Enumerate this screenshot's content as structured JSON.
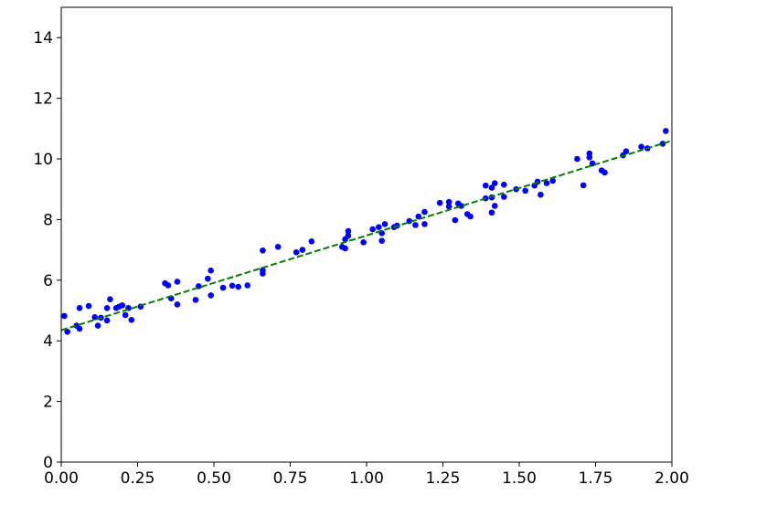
{
  "chart_data": {
    "type": "scatter",
    "title": "",
    "xlabel": "",
    "ylabel": "",
    "xlim": [
      0,
      2
    ],
    "ylim": [
      0,
      15
    ],
    "grid": false,
    "x_ticks": [
      "0.00",
      "0.25",
      "0.50",
      "0.75",
      "1.00",
      "1.25",
      "1.50",
      "1.75",
      "2.00"
    ],
    "y_ticks": [
      "0",
      "2",
      "4",
      "6",
      "8",
      "10",
      "12",
      "14"
    ],
    "series": [
      {
        "kind": "scatter",
        "color": "#0000ff",
        "marker": "point",
        "points": [
          [
            0.01,
            4.82
          ],
          [
            0.02,
            4.3
          ],
          [
            0.05,
            4.5
          ],
          [
            0.06,
            4.4
          ],
          [
            0.06,
            5.08
          ],
          [
            0.09,
            5.15
          ],
          [
            0.11,
            4.78
          ],
          [
            0.12,
            4.5
          ],
          [
            0.13,
            4.76
          ],
          [
            0.15,
            4.67
          ],
          [
            0.15,
            5.08
          ],
          [
            0.16,
            5.37
          ],
          [
            0.18,
            5.08
          ],
          [
            0.19,
            5.13
          ],
          [
            0.2,
            5.17
          ],
          [
            0.21,
            4.85
          ],
          [
            0.22,
            5.08
          ],
          [
            0.23,
            4.69
          ],
          [
            0.26,
            5.13
          ],
          [
            0.34,
            5.9
          ],
          [
            0.35,
            5.83
          ],
          [
            0.36,
            5.4
          ],
          [
            0.38,
            5.2
          ],
          [
            0.38,
            5.95
          ],
          [
            0.44,
            5.35
          ],
          [
            0.45,
            5.8
          ],
          [
            0.48,
            6.05
          ],
          [
            0.49,
            6.32
          ],
          [
            0.49,
            5.5
          ],
          [
            0.53,
            5.75
          ],
          [
            0.56,
            5.82
          ],
          [
            0.58,
            5.78
          ],
          [
            0.61,
            5.83
          ],
          [
            0.66,
            6.22
          ],
          [
            0.66,
            6.33
          ],
          [
            0.66,
            6.98
          ],
          [
            0.71,
            7.1
          ],
          [
            0.77,
            6.92
          ],
          [
            0.79,
            7.0
          ],
          [
            0.82,
            7.28
          ],
          [
            0.92,
            7.1
          ],
          [
            0.93,
            7.05
          ],
          [
            0.93,
            7.35
          ],
          [
            0.94,
            7.62
          ],
          [
            0.94,
            7.47
          ],
          [
            0.99,
            7.25
          ],
          [
            1.02,
            7.68
          ],
          [
            1.04,
            7.75
          ],
          [
            1.05,
            7.3
          ],
          [
            1.05,
            7.55
          ],
          [
            1.06,
            7.85
          ],
          [
            1.09,
            7.75
          ],
          [
            1.1,
            7.8
          ],
          [
            1.14,
            7.95
          ],
          [
            1.16,
            7.82
          ],
          [
            1.17,
            8.1
          ],
          [
            1.19,
            7.85
          ],
          [
            1.19,
            8.25
          ],
          [
            1.24,
            8.55
          ],
          [
            1.27,
            8.43
          ],
          [
            1.27,
            8.58
          ],
          [
            1.29,
            7.98
          ],
          [
            1.3,
            8.53
          ],
          [
            1.31,
            8.45
          ],
          [
            1.33,
            8.18
          ],
          [
            1.34,
            8.1
          ],
          [
            1.39,
            8.7
          ],
          [
            1.39,
            9.12
          ],
          [
            1.41,
            9.05
          ],
          [
            1.41,
            8.73
          ],
          [
            1.41,
            8.23
          ],
          [
            1.42,
            8.45
          ],
          [
            1.42,
            9.2
          ],
          [
            1.45,
            8.75
          ],
          [
            1.45,
            9.15
          ],
          [
            1.49,
            9.0
          ],
          [
            1.52,
            8.95
          ],
          [
            1.55,
            9.12
          ],
          [
            1.56,
            9.25
          ],
          [
            1.57,
            8.82
          ],
          [
            1.59,
            9.2
          ],
          [
            1.61,
            9.28
          ],
          [
            1.69,
            10.0
          ],
          [
            1.71,
            9.13
          ],
          [
            1.73,
            10.18
          ],
          [
            1.73,
            10.05
          ],
          [
            1.74,
            9.85
          ],
          [
            1.77,
            9.62
          ],
          [
            1.78,
            9.55
          ],
          [
            1.84,
            10.12
          ],
          [
            1.85,
            10.25
          ],
          [
            1.9,
            10.4
          ],
          [
            1.92,
            10.35
          ],
          [
            1.97,
            10.5
          ],
          [
            1.98,
            10.92
          ]
        ]
      },
      {
        "kind": "line",
        "color": "#008000",
        "style": "dashed",
        "points": [
          [
            0,
            4.35
          ],
          [
            2,
            10.6
          ]
        ]
      }
    ]
  }
}
